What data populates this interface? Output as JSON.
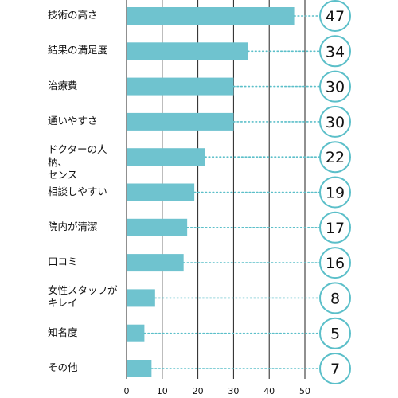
{
  "chart_data": {
    "type": "bar",
    "orientation": "horizontal",
    "categories": [
      "技術の高さ",
      "結果の満足度",
      "治療費",
      "通いやすさ",
      "ドクターの人柄、センス",
      "相談しやすい",
      "院内が清潔",
      "口コミ",
      "女性スタッフがキレイ",
      "知名度",
      "その他"
    ],
    "category_lines": [
      [
        "技術の高さ"
      ],
      [
        "結果の満足度"
      ],
      [
        "治療費"
      ],
      [
        "通いやすさ"
      ],
      [
        "ドクターの人柄、",
        "センス"
      ],
      [
        "相談しやすい"
      ],
      [
        "院内が清潔"
      ],
      [
        "口コミ"
      ],
      [
        "女性スタッフが",
        "キレイ"
      ],
      [
        "知名度"
      ],
      [
        "その他"
      ]
    ],
    "values": [
      47,
      34,
      30,
      30,
      22,
      19,
      17,
      16,
      8,
      5,
      7
    ],
    "data_labels": [
      "47",
      "34",
      "30",
      "30",
      "22",
      "19",
      "17",
      "16",
      "8",
      "5",
      "7"
    ],
    "xlim": [
      0,
      50
    ],
    "x_ticks": [
      "0",
      "10",
      "20",
      "30",
      "40",
      "50"
    ],
    "title": "",
    "xlabel": "",
    "ylabel": "",
    "grid": true,
    "colors": {
      "bar": "#6fc3cf",
      "bubble_border": "#5bbfc9",
      "connector": "#5bbfc9",
      "gridline": "#222222"
    }
  }
}
